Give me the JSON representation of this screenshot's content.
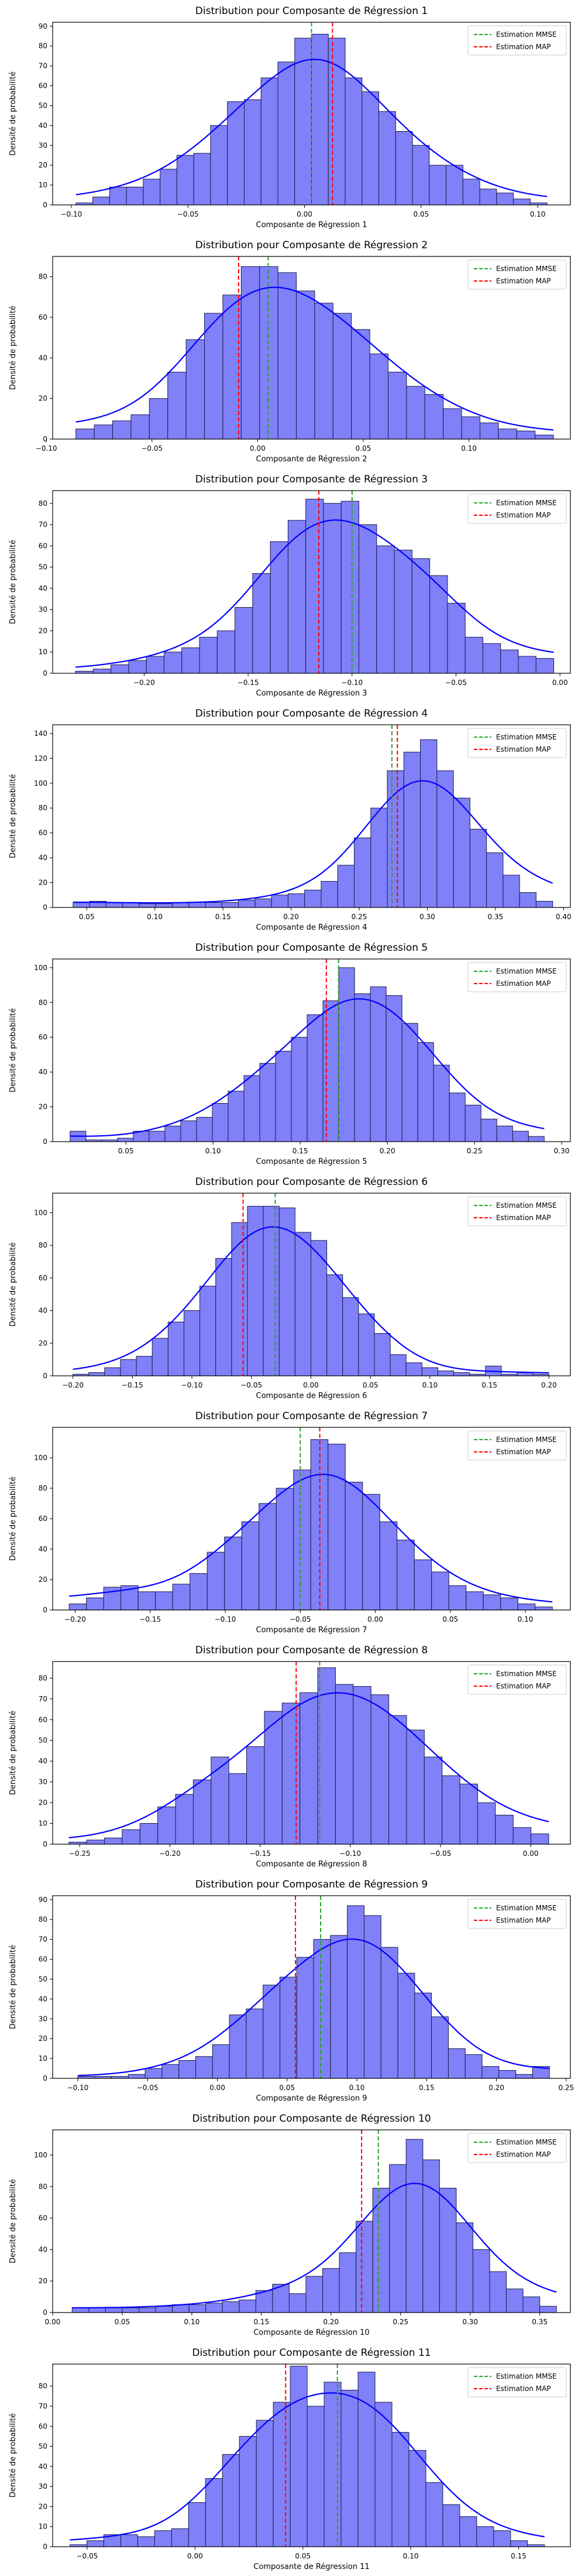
{
  "legend_labels": {
    "mmse": "Estimation MMSE",
    "map": "Estimation MAP"
  },
  "ylabel": "Densité de probabilité",
  "colors": {
    "bar_fill": "#8080f8",
    "bar_edge": "#1a1a4d",
    "kde": "#0000ff",
    "mmse": "#2ca02c",
    "map": "#ff0000"
  },
  "chart_data": [
    {
      "type": "bar",
      "title": "Distribution pour Composante de Régression 1",
      "xlabel": "Composante de Régression 1",
      "xlim": [
        -0.108,
        0.114
      ],
      "ylim": [
        0,
        92
      ],
      "xticks": [
        -0.1,
        -0.05,
        0.0,
        0.05,
        0.1
      ],
      "yticks": [
        0,
        10,
        20,
        30,
        40,
        50,
        60,
        70,
        80,
        90
      ],
      "xtick_labels": [
        "−0.10",
        "−0.05",
        "0.00",
        "0.05",
        "0.10"
      ],
      "ytick_labels": [
        "0",
        "10",
        "20",
        "30",
        "40",
        "50",
        "60",
        "70",
        "80",
        "90"
      ],
      "bin_start": -0.098,
      "bin_end": 0.104,
      "values": [
        1,
        4,
        9,
        9,
        13,
        18,
        25,
        26,
        40,
        52,
        53,
        64,
        72,
        84,
        86,
        84,
        64,
        57,
        47,
        37,
        30,
        20,
        20,
        13,
        8,
        6,
        3,
        1
      ],
      "mmse": 0.003,
      "map": 0.012
    },
    {
      "type": "bar",
      "title": "Distribution pour Composante de Régression 2",
      "xlabel": "Composante de Régression 2",
      "xlim": [
        -0.097,
        0.148
      ],
      "ylim": [
        0,
        90
      ],
      "xticks": [
        -0.1,
        -0.05,
        0.0,
        0.05,
        0.1
      ],
      "yticks": [
        0,
        20,
        40,
        60,
        80
      ],
      "xtick_labels": [
        "−0.10",
        "−0.05",
        "0.00",
        "0.05",
        "0.10"
      ],
      "ytick_labels": [
        "0",
        "20",
        "40",
        "60",
        "80"
      ],
      "bin_start": -0.086,
      "bin_end": 0.14,
      "values": [
        5,
        7,
        9,
        12,
        20,
        33,
        49,
        62,
        71,
        85,
        85,
        82,
        73,
        67,
        62,
        54,
        42,
        33,
        26,
        22,
        15,
        11,
        8,
        5,
        4,
        2
      ],
      "mmse": 0.005,
      "map": -0.009
    },
    {
      "type": "bar",
      "title": "Distribution pour Composante de Régression 3",
      "xlabel": "Composante de Régression 3",
      "xlim": [
        -0.244,
        0.005
      ],
      "ylim": [
        0,
        86
      ],
      "xticks": [
        -0.2,
        -0.15,
        -0.1,
        -0.05,
        0.0
      ],
      "yticks": [
        0,
        10,
        20,
        30,
        40,
        50,
        60,
        70,
        80
      ],
      "xtick_labels": [
        "−0.20",
        "−0.15",
        "−0.10",
        "−0.05",
        "0.00"
      ],
      "ytick_labels": [
        "0",
        "10",
        "20",
        "30",
        "40",
        "50",
        "60",
        "70",
        "80"
      ],
      "bin_start": -0.233,
      "bin_end": -0.003,
      "values": [
        1,
        2,
        4,
        6,
        8,
        10,
        12,
        17,
        20,
        31,
        47,
        62,
        72,
        82,
        80,
        81,
        70,
        60,
        58,
        54,
        46,
        33,
        17,
        14,
        11,
        8,
        7
      ],
      "mmse": -0.1,
      "map": -0.116
    },
    {
      "type": "bar",
      "title": "Distribution pour Composante de Régression 4",
      "xlabel": "Composante de Régression 4",
      "xlim": [
        0.025,
        0.405
      ],
      "ylim": [
        0,
        147
      ],
      "xticks": [
        0.05,
        0.1,
        0.15,
        0.2,
        0.25,
        0.3,
        0.35,
        0.4
      ],
      "yticks": [
        0,
        20,
        40,
        60,
        80,
        100,
        120,
        140
      ],
      "xtick_labels": [
        "0.05",
        "0.10",
        "0.15",
        "0.20",
        "0.25",
        "0.30",
        "0.35",
        "0.40"
      ],
      "ytick_labels": [
        "0",
        "20",
        "40",
        "60",
        "80",
        "100",
        "120",
        "140"
      ],
      "bin_start": 0.04,
      "bin_end": 0.392,
      "values": [
        4,
        5,
        4,
        4,
        3,
        3,
        4,
        4,
        4,
        4,
        6,
        7,
        10,
        11,
        14,
        21,
        34,
        56,
        80,
        110,
        125,
        135,
        110,
        88,
        63,
        44,
        26,
        12,
        5
      ],
      "mmse": 0.274,
      "map": 0.278
    },
    {
      "type": "bar",
      "title": "Distribution pour Composante de Régression 5",
      "xlabel": "Composante de Régression 5",
      "xlim": [
        0.008,
        0.305
      ],
      "ylim": [
        0,
        105
      ],
      "xticks": [
        0.05,
        0.1,
        0.15,
        0.2,
        0.25,
        0.3
      ],
      "yticks": [
        0,
        20,
        40,
        60,
        80,
        100
      ],
      "xtick_labels": [
        "0.05",
        "0.10",
        "0.15",
        "0.20",
        "0.25",
        "0.30"
      ],
      "ytick_labels": [
        "0",
        "20",
        "40",
        "60",
        "80",
        "100"
      ],
      "bin_start": 0.018,
      "bin_end": 0.29,
      "values": [
        6,
        1,
        1,
        2,
        6,
        6,
        9,
        12,
        14,
        22,
        29,
        38,
        45,
        52,
        60,
        73,
        81,
        100,
        85,
        89,
        84,
        68,
        57,
        44,
        28,
        21,
        13,
        9,
        6,
        3
      ],
      "mmse": 0.172,
      "map": 0.165
    },
    {
      "type": "bar",
      "title": "Distribution pour Composante de Régression 6",
      "xlabel": "Composante de Régression 6",
      "xlim": [
        -0.217,
        0.218
      ],
      "ylim": [
        0,
        112
      ],
      "xticks": [
        -0.2,
        -0.15,
        -0.1,
        -0.05,
        0.0,
        0.05,
        0.1,
        0.15,
        0.2
      ],
      "yticks": [
        0,
        20,
        40,
        60,
        80,
        100
      ],
      "xtick_labels": [
        "−0.20",
        "−0.15",
        "−0.10",
        "−0.05",
        "0.00",
        "0.05",
        "0.10",
        "0.15",
        "0.20"
      ],
      "ytick_labels": [
        "0",
        "20",
        "40",
        "60",
        "80",
        "100"
      ],
      "bin_start": -0.2,
      "bin_end": 0.2,
      "values": [
        1,
        2,
        5,
        10,
        12,
        23,
        33,
        40,
        55,
        72,
        94,
        104,
        104,
        103,
        88,
        83,
        62,
        48,
        38,
        26,
        13,
        8,
        5,
        3,
        2,
        1,
        6,
        1,
        2,
        1
      ],
      "mmse": -0.03,
      "map": -0.057
    },
    {
      "type": "bar",
      "title": "Distribution pour Composante de Régression 7",
      "xlabel": "Composante de Régression 7",
      "xlim": [
        -0.215,
        0.13
      ],
      "ylim": [
        0,
        120
      ],
      "xticks": [
        -0.2,
        -0.15,
        -0.1,
        -0.05,
        0.0,
        0.05,
        0.1
      ],
      "yticks": [
        0,
        20,
        40,
        60,
        80,
        100
      ],
      "xtick_labels": [
        "−0.20",
        "−0.15",
        "−0.10",
        "−0.05",
        "0.00",
        "0.05",
        "0.10"
      ],
      "ytick_labels": [
        "0",
        "20",
        "40",
        "60",
        "80",
        "100"
      ],
      "bin_start": -0.204,
      "bin_end": 0.118,
      "values": [
        4,
        8,
        15,
        16,
        12,
        12,
        17,
        24,
        38,
        48,
        58,
        70,
        80,
        92,
        112,
        109,
        84,
        76,
        58,
        46,
        33,
        25,
        16,
        12,
        10,
        8,
        4,
        2
      ],
      "mmse": -0.05,
      "map": -0.037
    },
    {
      "type": "bar",
      "title": "Distribution pour Composante de Régression 8",
      "xlabel": "Composante de Régression 8",
      "xlim": [
        -0.265,
        0.022
      ],
      "ylim": [
        0,
        88
      ],
      "xticks": [
        -0.25,
        -0.2,
        -0.15,
        -0.1,
        -0.05,
        0.0
      ],
      "yticks": [
        0,
        10,
        20,
        30,
        40,
        50,
        60,
        70,
        80
      ],
      "xtick_labels": [
        "−0.25",
        "−0.20",
        "−0.15",
        "−0.10",
        "−0.05",
        "0.00"
      ],
      "ytick_labels": [
        "0",
        "10",
        "20",
        "30",
        "40",
        "50",
        "60",
        "70",
        "80"
      ],
      "bin_start": -0.256,
      "bin_end": 0.01,
      "values": [
        1,
        2,
        3,
        7,
        10,
        18,
        24,
        31,
        42,
        34,
        47,
        64,
        68,
        73,
        85,
        77,
        76,
        72,
        62,
        55,
        42,
        33,
        29,
        20,
        14,
        8,
        5
      ],
      "mmse": -0.117,
      "map": -0.13
    },
    {
      "type": "bar",
      "title": "Distribution pour Composante de Régression 9",
      "xlabel": "Composante de Régression 9",
      "xlim": [
        -0.118,
        0.253
      ],
      "ylim": [
        0,
        92
      ],
      "xticks": [
        -0.1,
        -0.05,
        0.0,
        0.05,
        0.1,
        0.15,
        0.2,
        0.25
      ],
      "yticks": [
        0,
        10,
        20,
        30,
        40,
        50,
        60,
        70,
        80,
        90
      ],
      "xtick_labels": [
        "−0.10",
        "−0.05",
        "0.00",
        "0.05",
        "0.10",
        "0.15",
        "0.20",
        "0.25"
      ],
      "ytick_labels": [
        "0",
        "10",
        "20",
        "30",
        "40",
        "50",
        "60",
        "70",
        "80",
        "90"
      ],
      "bin_start": -0.1,
      "bin_end": 0.238,
      "values": [
        1,
        1,
        1,
        2,
        5,
        7,
        9,
        11,
        17,
        32,
        35,
        47,
        51,
        61,
        70,
        72,
        87,
        82,
        66,
        53,
        43,
        31,
        15,
        12,
        6,
        4,
        2,
        6
      ],
      "mmse": 0.074,
      "map": 0.056
    },
    {
      "type": "bar",
      "title": "Distribution pour Composante de Régression 10",
      "xlabel": "Composante de Régression 10",
      "xlim": [
        0.0,
        0.372
      ],
      "ylim": [
        0,
        116
      ],
      "xticks": [
        0.0,
        0.05,
        0.1,
        0.15,
        0.2,
        0.25,
        0.3,
        0.35
      ],
      "yticks": [
        0,
        20,
        40,
        60,
        80,
        100
      ],
      "xtick_labels": [
        "0.00",
        "0.05",
        "0.10",
        "0.15",
        "0.20",
        "0.25",
        "0.30",
        "0.35"
      ],
      "ytick_labels": [
        "0",
        "20",
        "40",
        "60",
        "80",
        "100"
      ],
      "bin_start": 0.014,
      "bin_end": 0.362,
      "values": [
        3,
        3,
        3,
        3,
        3,
        4,
        5,
        5,
        6,
        7,
        8,
        14,
        18,
        12,
        23,
        28,
        38,
        58,
        79,
        94,
        110,
        97,
        79,
        57,
        40,
        26,
        15,
        10,
        4
      ],
      "mmse": 0.234,
      "map": 0.222
    },
    {
      "type": "bar",
      "title": "Distribution pour Composante de Régression 11",
      "xlabel": "Composante de Régression 11",
      "xlim": [
        -0.066,
        0.174
      ],
      "ylim": [
        0,
        91
      ],
      "xticks": [
        -0.05,
        0.0,
        0.05,
        0.1,
        0.15
      ],
      "yticks": [
        0,
        10,
        20,
        30,
        40,
        50,
        60,
        70,
        80
      ],
      "xtick_labels": [
        "−0.05",
        "0.00",
        "0.05",
        "0.10",
        "0.15"
      ],
      "ytick_labels": [
        "0",
        "10",
        "20",
        "30",
        "40",
        "50",
        "60",
        "70",
        "80"
      ],
      "bin_start": -0.058,
      "bin_end": 0.162,
      "values": [
        1,
        3,
        6,
        6,
        5,
        8,
        9,
        22,
        34,
        46,
        55,
        63,
        72,
        90,
        70,
        82,
        78,
        87,
        72,
        57,
        48,
        32,
        21,
        15,
        10,
        8,
        3,
        1
      ],
      "mmse": 0.066,
      "map": 0.042
    }
  ]
}
